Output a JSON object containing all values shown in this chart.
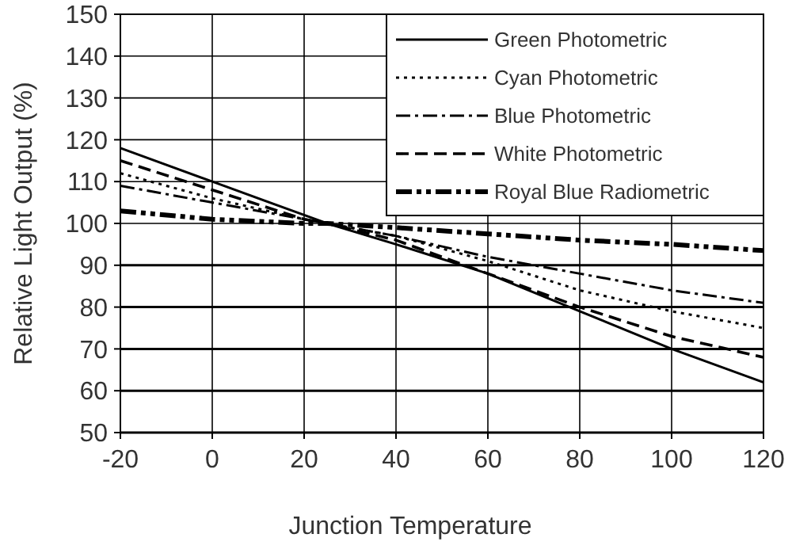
{
  "chart_data": {
    "type": "line",
    "xlabel": "Junction Temperature",
    "ylabel": "Relative Light Output (%)",
    "x": [
      -20,
      0,
      20,
      25,
      40,
      60,
      80,
      100,
      120
    ],
    "xlim": [
      -20,
      120
    ],
    "xticks": [
      -20,
      0,
      20,
      40,
      60,
      80,
      100,
      120
    ],
    "ylim": [
      50,
      150
    ],
    "yticks": [
      50,
      60,
      70,
      80,
      90,
      100,
      110,
      120,
      130,
      140,
      150
    ],
    "grid": true,
    "legend": "top right",
    "marker": "none",
    "series": [
      {
        "name": "Green Photometric",
        "color": "#000000",
        "line_style": "solid",
        "values": [
          118,
          110,
          102,
          100,
          95,
          88,
          79,
          70,
          62
        ]
      },
      {
        "name": "Cyan Photometric",
        "color": "#000000",
        "line_style": "dotted",
        "values": [
          112,
          106,
          101,
          100,
          97,
          91,
          84,
          79,
          75
        ]
      },
      {
        "name": "Blue Photometric",
        "color": "#000000",
        "line_style": "dashdot",
        "values": [
          109,
          105,
          101,
          100,
          97,
          92,
          88,
          84,
          81
        ]
      },
      {
        "name": "White Photometric",
        "color": "#000000",
        "line_style": "dashed",
        "values": [
          115,
          108,
          101,
          100,
          96,
          88,
          80,
          73,
          68
        ]
      },
      {
        "name": "Royal Blue Radiometric",
        "color": "#000000",
        "line_style": "dashdotdot",
        "values": [
          103,
          101,
          100,
          100,
          99,
          97.5,
          96,
          95,
          93.5
        ]
      }
    ]
  }
}
